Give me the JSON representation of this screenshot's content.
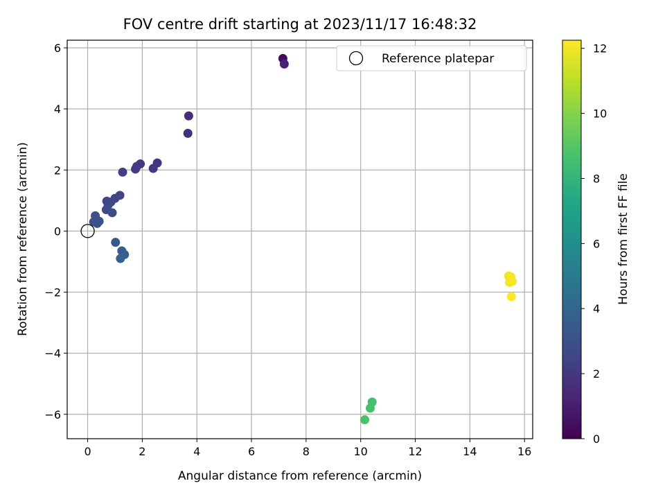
{
  "chart_data": {
    "type": "scatter",
    "title": "FOV centre drift starting at 2023/11/17 16:48:32",
    "xlabel": "Angular distance from reference (arcmin)",
    "ylabel": "Rotation from reference (arcmin)",
    "xlim": [
      -0.75,
      16.3
    ],
    "ylim": [
      -6.8,
      6.25
    ],
    "xticks": [
      0,
      2,
      4,
      6,
      8,
      10,
      12,
      14,
      16
    ],
    "yticks": [
      -6,
      -4,
      -2,
      0,
      2,
      4,
      6
    ],
    "grid": true,
    "legend": {
      "position": "upper-right",
      "entries": [
        "Reference platepar"
      ]
    },
    "colorbar": {
      "label": "Hours from first FF file",
      "min": 0,
      "max": 12.25,
      "ticks": [
        0,
        2,
        4,
        6,
        8,
        10,
        12
      ],
      "colormap": "viridis"
    },
    "reference_point": {
      "x": 0,
      "y": 0,
      "label": "Reference platepar"
    },
    "points": [
      {
        "x": 7.15,
        "y": 5.65,
        "c": 0.3
      },
      {
        "x": 7.2,
        "y": 5.47,
        "c": 1.2
      },
      {
        "x": 3.7,
        "y": 3.77,
        "c": 1.6
      },
      {
        "x": 3.67,
        "y": 3.2,
        "c": 1.7
      },
      {
        "x": 2.55,
        "y": 2.23,
        "c": 1.9
      },
      {
        "x": 2.4,
        "y": 2.05,
        "c": 2.0
      },
      {
        "x": 1.93,
        "y": 2.2,
        "c": 2.1
      },
      {
        "x": 1.8,
        "y": 2.12,
        "c": 2.15
      },
      {
        "x": 1.75,
        "y": 2.03,
        "c": 2.2
      },
      {
        "x": 1.28,
        "y": 1.93,
        "c": 2.3
      },
      {
        "x": 1.18,
        "y": 1.17,
        "c": 2.5
      },
      {
        "x": 1.0,
        "y": 1.07,
        "c": 2.55
      },
      {
        "x": 0.7,
        "y": 0.98,
        "c": 2.6
      },
      {
        "x": 0.85,
        "y": 0.95,
        "c": 2.65
      },
      {
        "x": 0.75,
        "y": 0.85,
        "c": 2.7
      },
      {
        "x": 0.68,
        "y": 0.7,
        "c": 2.75
      },
      {
        "x": 0.9,
        "y": 0.6,
        "c": 2.8
      },
      {
        "x": 0.28,
        "y": 0.5,
        "c": 2.9
      },
      {
        "x": 0.22,
        "y": 0.3,
        "c": 2.95
      },
      {
        "x": 0.35,
        "y": 0.25,
        "c": 3.0
      },
      {
        "x": 0.42,
        "y": 0.32,
        "c": 3.05
      },
      {
        "x": 1.02,
        "y": -0.37,
        "c": 3.4
      },
      {
        "x": 1.25,
        "y": -0.65,
        "c": 3.6
      },
      {
        "x": 1.35,
        "y": -0.77,
        "c": 3.7
      },
      {
        "x": 1.2,
        "y": -0.9,
        "c": 3.8
      },
      {
        "x": 10.42,
        "y": -5.6,
        "c": 8.6
      },
      {
        "x": 10.35,
        "y": -5.8,
        "c": 8.65
      },
      {
        "x": 10.15,
        "y": -6.18,
        "c": 8.7
      },
      {
        "x": 15.42,
        "y": -1.47,
        "c": 12.0
      },
      {
        "x": 15.5,
        "y": -1.5,
        "c": 12.05
      },
      {
        "x": 15.55,
        "y": -1.65,
        "c": 12.1
      },
      {
        "x": 15.45,
        "y": -1.68,
        "c": 12.1
      },
      {
        "x": 15.52,
        "y": -2.15,
        "c": 12.2
      }
    ]
  }
}
